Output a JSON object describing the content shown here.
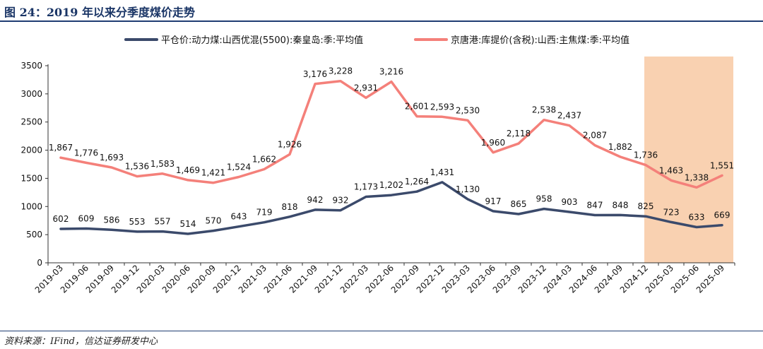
{
  "figure": {
    "title": "图 24：2019 年以来分季度煤价走势",
    "source": "资料来源：IFind，信达证券研发中心"
  },
  "chart_data": {
    "type": "line",
    "categories": [
      "2019-03",
      "2019-06",
      "2019-09",
      "2019-12",
      "2020-03",
      "2020-06",
      "2020-09",
      "2020-12",
      "2021-03",
      "2021-06",
      "2021-09",
      "2021-12",
      "2022-03",
      "2022-06",
      "2022-09",
      "2022-12",
      "2023-03",
      "2023-06",
      "2023-09",
      "2023-12",
      "2024-03",
      "2024-06",
      "2024-09",
      "2024-12",
      "2025-03",
      "2025-06",
      "2025-09"
    ],
    "ylim": [
      0,
      3500
    ],
    "yticks": [
      0,
      500,
      1000,
      1500,
      2000,
      2500,
      3000,
      3500
    ],
    "highlight_range": [
      "2024-12",
      "2025-09"
    ],
    "highlight_color": "#f8c9a3",
    "grid": false,
    "legend_position": "top",
    "series": [
      {
        "name": "平仓价:动力煤:山西优混(5500):秦皇岛:季:平均值",
        "color": "#3b4a6b",
        "values": [
          602,
          609,
          586,
          553,
          557,
          514,
          570,
          643,
          719,
          818,
          942,
          932,
          1173,
          1202,
          1264,
          1431,
          1130,
          917,
          865,
          958,
          903,
          847,
          848,
          825,
          723,
          633,
          669
        ]
      },
      {
        "name": "京唐港:库提价(含税):山西:主焦煤:季:平均值",
        "color": "#f4807a",
        "values": [
          1867,
          1776,
          1693,
          1536,
          1583,
          1469,
          1421,
          1524,
          1662,
          1926,
          3176,
          3228,
          2931,
          3216,
          2601,
          2593,
          2530,
          1960,
          2118,
          2538,
          2437,
          2087,
          1882,
          1736,
          1463,
          1338,
          1551
        ]
      }
    ]
  }
}
